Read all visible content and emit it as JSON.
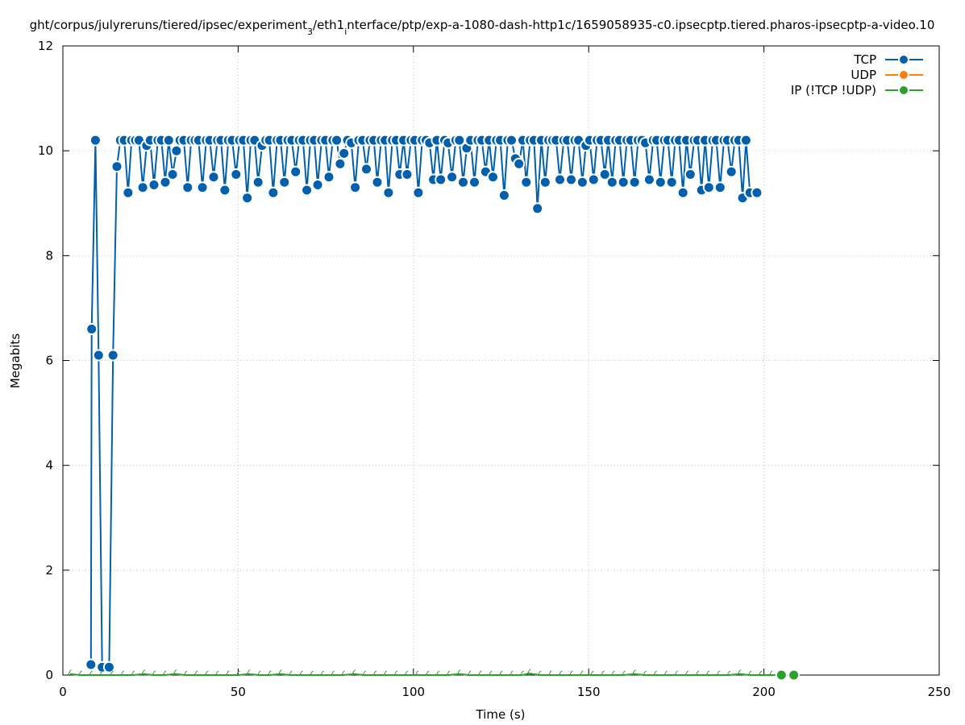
{
  "chart_data": {
    "type": "line",
    "title": "ght/corpus/julyreruns/tiered/ipsec/experiment_3/eth1_interface/ptp/exp-a-1080-dash-http1c/1659058935-c0.ipsecptp.tiered.pharos-ipsecptp-a-video.10",
    "title_main_1": "ght/corpus/julyreruns/tiered/ipsec/experiment",
    "title_sub_1": "3",
    "title_main_2": "/eth1",
    "title_sub_2": "i",
    "title_main_3": "nterface/ptp/exp-a-1080-dash-http1c/1659058935-c0.ipsecptp.tiered.pharos-ipsecptp-a-video.10",
    "xlabel": "Time (s)",
    "ylabel": "Megabits",
    "xlim": [
      0,
      250
    ],
    "ylim": [
      0,
      12
    ],
    "x_ticks": [
      0,
      50,
      100,
      150,
      200,
      250
    ],
    "y_ticks": [
      0,
      2,
      4,
      6,
      8,
      10,
      12
    ],
    "grid": true,
    "legend_position": "top-right",
    "series": [
      {
        "name": "TCP",
        "color": "#0060ad",
        "points": [
          [
            8,
            0.2
          ],
          [
            8.2,
            6.6
          ],
          [
            9.3,
            10.2
          ],
          [
            10.2,
            6.1
          ],
          [
            11.2,
            0.15
          ],
          [
            13.2,
            0.15
          ],
          [
            14.3,
            6.1
          ],
          [
            15.4,
            9.7
          ],
          [
            16.4,
            10.2
          ],
          [
            17.5,
            10.2
          ],
          [
            18.6,
            9.2
          ],
          [
            19.6,
            10.2
          ],
          [
            20.7,
            10.2
          ],
          [
            21.7,
            10.2
          ],
          [
            22.8,
            9.3
          ],
          [
            23.9,
            10.1
          ],
          [
            24.9,
            10.2
          ],
          [
            26.0,
            9.35
          ],
          [
            27.1,
            10.2
          ],
          [
            28.1,
            10.2
          ],
          [
            29.2,
            9.4
          ],
          [
            30.2,
            10.2
          ],
          [
            31.3,
            9.55
          ],
          [
            32.4,
            10.0
          ],
          [
            33.4,
            10.2
          ],
          [
            34.5,
            10.2
          ],
          [
            35.6,
            9.3
          ],
          [
            36.6,
            10.2
          ],
          [
            37.7,
            10.2
          ],
          [
            38.7,
            10.2
          ],
          [
            39.8,
            9.3
          ],
          [
            40.9,
            10.2
          ],
          [
            41.9,
            10.2
          ],
          [
            43.0,
            9.5
          ],
          [
            44.1,
            10.2
          ],
          [
            45.1,
            10.2
          ],
          [
            46.2,
            9.25
          ],
          [
            47.2,
            10.2
          ],
          [
            48.3,
            10.2
          ],
          [
            49.4,
            9.55
          ],
          [
            50.4,
            10.2
          ],
          [
            51.5,
            10.2
          ],
          [
            52.6,
            9.1
          ],
          [
            53.6,
            10.2
          ],
          [
            54.7,
            10.2
          ],
          [
            55.7,
            9.4
          ],
          [
            56.8,
            10.1
          ],
          [
            57.9,
            10.2
          ],
          [
            58.9,
            10.2
          ],
          [
            60.0,
            9.2
          ],
          [
            61.1,
            10.2
          ],
          [
            62.1,
            10.2
          ],
          [
            63.2,
            9.4
          ],
          [
            64.2,
            10.2
          ],
          [
            65.3,
            10.2
          ],
          [
            66.4,
            9.6
          ],
          [
            67.4,
            10.2
          ],
          [
            68.5,
            10.2
          ],
          [
            69.6,
            9.25
          ],
          [
            70.6,
            10.2
          ],
          [
            71.7,
            10.2
          ],
          [
            72.7,
            9.35
          ],
          [
            73.8,
            10.2
          ],
          [
            74.9,
            10.2
          ],
          [
            75.9,
            9.5
          ],
          [
            77.0,
            10.2
          ],
          [
            78.1,
            10.2
          ],
          [
            79.1,
            9.75
          ],
          [
            80.2,
            9.95
          ],
          [
            81.2,
            10.2
          ],
          [
            82.3,
            10.15
          ],
          [
            83.4,
            9.3
          ],
          [
            84.4,
            10.2
          ],
          [
            85.5,
            10.2
          ],
          [
            86.6,
            9.65
          ],
          [
            87.6,
            10.2
          ],
          [
            88.7,
            10.2
          ],
          [
            89.7,
            9.4
          ],
          [
            90.8,
            10.2
          ],
          [
            91.9,
            10.2
          ],
          [
            92.9,
            9.2
          ],
          [
            94.0,
            10.2
          ],
          [
            95.1,
            10.2
          ],
          [
            96.1,
            9.55
          ],
          [
            97.2,
            10.2
          ],
          [
            98.2,
            9.55
          ],
          [
            99.3,
            10.2
          ],
          [
            100.4,
            10.2
          ],
          [
            101.4,
            9.2
          ],
          [
            102.5,
            10.2
          ],
          [
            103.6,
            10.2
          ],
          [
            104.6,
            10.15
          ],
          [
            105.7,
            9.45
          ],
          [
            106.7,
            10.2
          ],
          [
            107.8,
            9.45
          ],
          [
            108.9,
            10.2
          ],
          [
            109.9,
            10.15
          ],
          [
            111.0,
            9.5
          ],
          [
            112.1,
            10.2
          ],
          [
            113.1,
            10.2
          ],
          [
            114.2,
            9.4
          ],
          [
            115.2,
            10.05
          ],
          [
            116.3,
            10.2
          ],
          [
            117.4,
            9.4
          ],
          [
            118.4,
            10.2
          ],
          [
            119.5,
            10.2
          ],
          [
            120.6,
            9.6
          ],
          [
            121.6,
            10.2
          ],
          [
            122.7,
            9.5
          ],
          [
            123.7,
            10.2
          ],
          [
            124.8,
            10.2
          ],
          [
            125.9,
            9.15
          ],
          [
            126.9,
            10.2
          ],
          [
            128.0,
            10.2
          ],
          [
            129.1,
            9.85
          ],
          [
            130.1,
            9.75
          ],
          [
            131.2,
            10.2
          ],
          [
            132.2,
            9.4
          ],
          [
            133.3,
            10.2
          ],
          [
            134.4,
            10.2
          ],
          [
            135.4,
            8.9
          ],
          [
            136.5,
            10.2
          ],
          [
            137.6,
            9.4
          ],
          [
            138.6,
            10.2
          ],
          [
            139.7,
            10.2
          ],
          [
            140.7,
            10.2
          ],
          [
            141.8,
            9.45
          ],
          [
            142.9,
            10.2
          ],
          [
            143.9,
            10.2
          ],
          [
            145.0,
            9.45
          ],
          [
            146.1,
            10.2
          ],
          [
            147.1,
            10.2
          ],
          [
            148.2,
            9.4
          ],
          [
            149.2,
            10.1
          ],
          [
            150.3,
            10.2
          ],
          [
            151.4,
            9.45
          ],
          [
            152.4,
            10.2
          ],
          [
            153.5,
            10.2
          ],
          [
            154.6,
            9.55
          ],
          [
            155.6,
            10.2
          ],
          [
            156.7,
            9.4
          ],
          [
            157.7,
            10.2
          ],
          [
            158.8,
            10.2
          ],
          [
            159.9,
            9.4
          ],
          [
            160.9,
            10.2
          ],
          [
            162.0,
            10.2
          ],
          [
            163.1,
            9.4
          ],
          [
            164.1,
            10.2
          ],
          [
            165.2,
            10.2
          ],
          [
            166.2,
            10.15
          ],
          [
            167.3,
            9.45
          ],
          [
            168.4,
            10.2
          ],
          [
            169.4,
            10.2
          ],
          [
            170.5,
            9.4
          ],
          [
            171.6,
            10.2
          ],
          [
            172.6,
            10.2
          ],
          [
            173.7,
            9.4
          ],
          [
            174.7,
            10.2
          ],
          [
            175.8,
            10.2
          ],
          [
            176.9,
            9.2
          ],
          [
            177.9,
            10.2
          ],
          [
            179.0,
            9.55
          ],
          [
            180.1,
            10.2
          ],
          [
            181.1,
            10.2
          ],
          [
            182.2,
            9.25
          ],
          [
            183.2,
            10.2
          ],
          [
            184.3,
            9.3
          ],
          [
            185.4,
            10.2
          ],
          [
            186.4,
            10.2
          ],
          [
            187.5,
            9.3
          ],
          [
            188.6,
            10.2
          ],
          [
            189.6,
            10.2
          ],
          [
            190.7,
            9.6
          ],
          [
            191.7,
            10.2
          ],
          [
            192.8,
            10.2
          ],
          [
            193.9,
            9.1
          ],
          [
            194.9,
            10.2
          ],
          [
            196.0,
            9.2
          ],
          [
            198.0,
            9.2
          ]
        ]
      },
      {
        "name": "UDP",
        "color": "#ff7f0e",
        "points": []
      },
      {
        "name": "IP (!TCP  !UDP)",
        "color": "#2ca02c",
        "points": [
          [
            2,
            0.02
          ],
          [
            5,
            0.0
          ],
          [
            8,
            0.0
          ],
          [
            11,
            0.0
          ],
          [
            14,
            0.0
          ],
          [
            17,
            0.0
          ],
          [
            20,
            0.0
          ],
          [
            23,
            0.02
          ],
          [
            26,
            0.0
          ],
          [
            29,
            0.0
          ],
          [
            32,
            0.02
          ],
          [
            35,
            0.0
          ],
          [
            38,
            0.0
          ],
          [
            41,
            0.0
          ],
          [
            44,
            0.0
          ],
          [
            47,
            0.0
          ],
          [
            50,
            0.0
          ],
          [
            53,
            0.02
          ],
          [
            56,
            0.0
          ],
          [
            59,
            0.0
          ],
          [
            62,
            0.02
          ],
          [
            65,
            0.0
          ],
          [
            68,
            0.0
          ],
          [
            71,
            0.0
          ],
          [
            74,
            0.0
          ],
          [
            77,
            0.0
          ],
          [
            80,
            0.0
          ],
          [
            83,
            0.02
          ],
          [
            86,
            0.0
          ],
          [
            89,
            0.0
          ],
          [
            92,
            0.0
          ],
          [
            95,
            0.0
          ],
          [
            98,
            0.0
          ],
          [
            101,
            0.0
          ],
          [
            104,
            0.0
          ],
          [
            107,
            0.0
          ],
          [
            110,
            0.0
          ],
          [
            113,
            0.02
          ],
          [
            116,
            0.0
          ],
          [
            119,
            0.0
          ],
          [
            122,
            0.0
          ],
          [
            125,
            0.0
          ],
          [
            128,
            0.0
          ],
          [
            131,
            0.0
          ],
          [
            133,
            0.03
          ],
          [
            136,
            0.0
          ],
          [
            139,
            0.0
          ],
          [
            142,
            0.0
          ],
          [
            145,
            0.0
          ],
          [
            148,
            0.0
          ],
          [
            151,
            0.0
          ],
          [
            154,
            0.0
          ],
          [
            157,
            0.0
          ],
          [
            160,
            0.0
          ],
          [
            163,
            0.02
          ],
          [
            166,
            0.0
          ],
          [
            169,
            0.0
          ],
          [
            172,
            0.0
          ],
          [
            175,
            0.0
          ],
          [
            178,
            0.0
          ],
          [
            181,
            0.0
          ],
          [
            184,
            0.0
          ],
          [
            187,
            0.0
          ],
          [
            190,
            0.0
          ],
          [
            193,
            0.02
          ],
          [
            196,
            0.0
          ],
          [
            199,
            0.0
          ],
          [
            202,
            0.0
          ],
          [
            205,
            0.0
          ],
          [
            208.5,
            0.0
          ]
        ]
      }
    ]
  }
}
